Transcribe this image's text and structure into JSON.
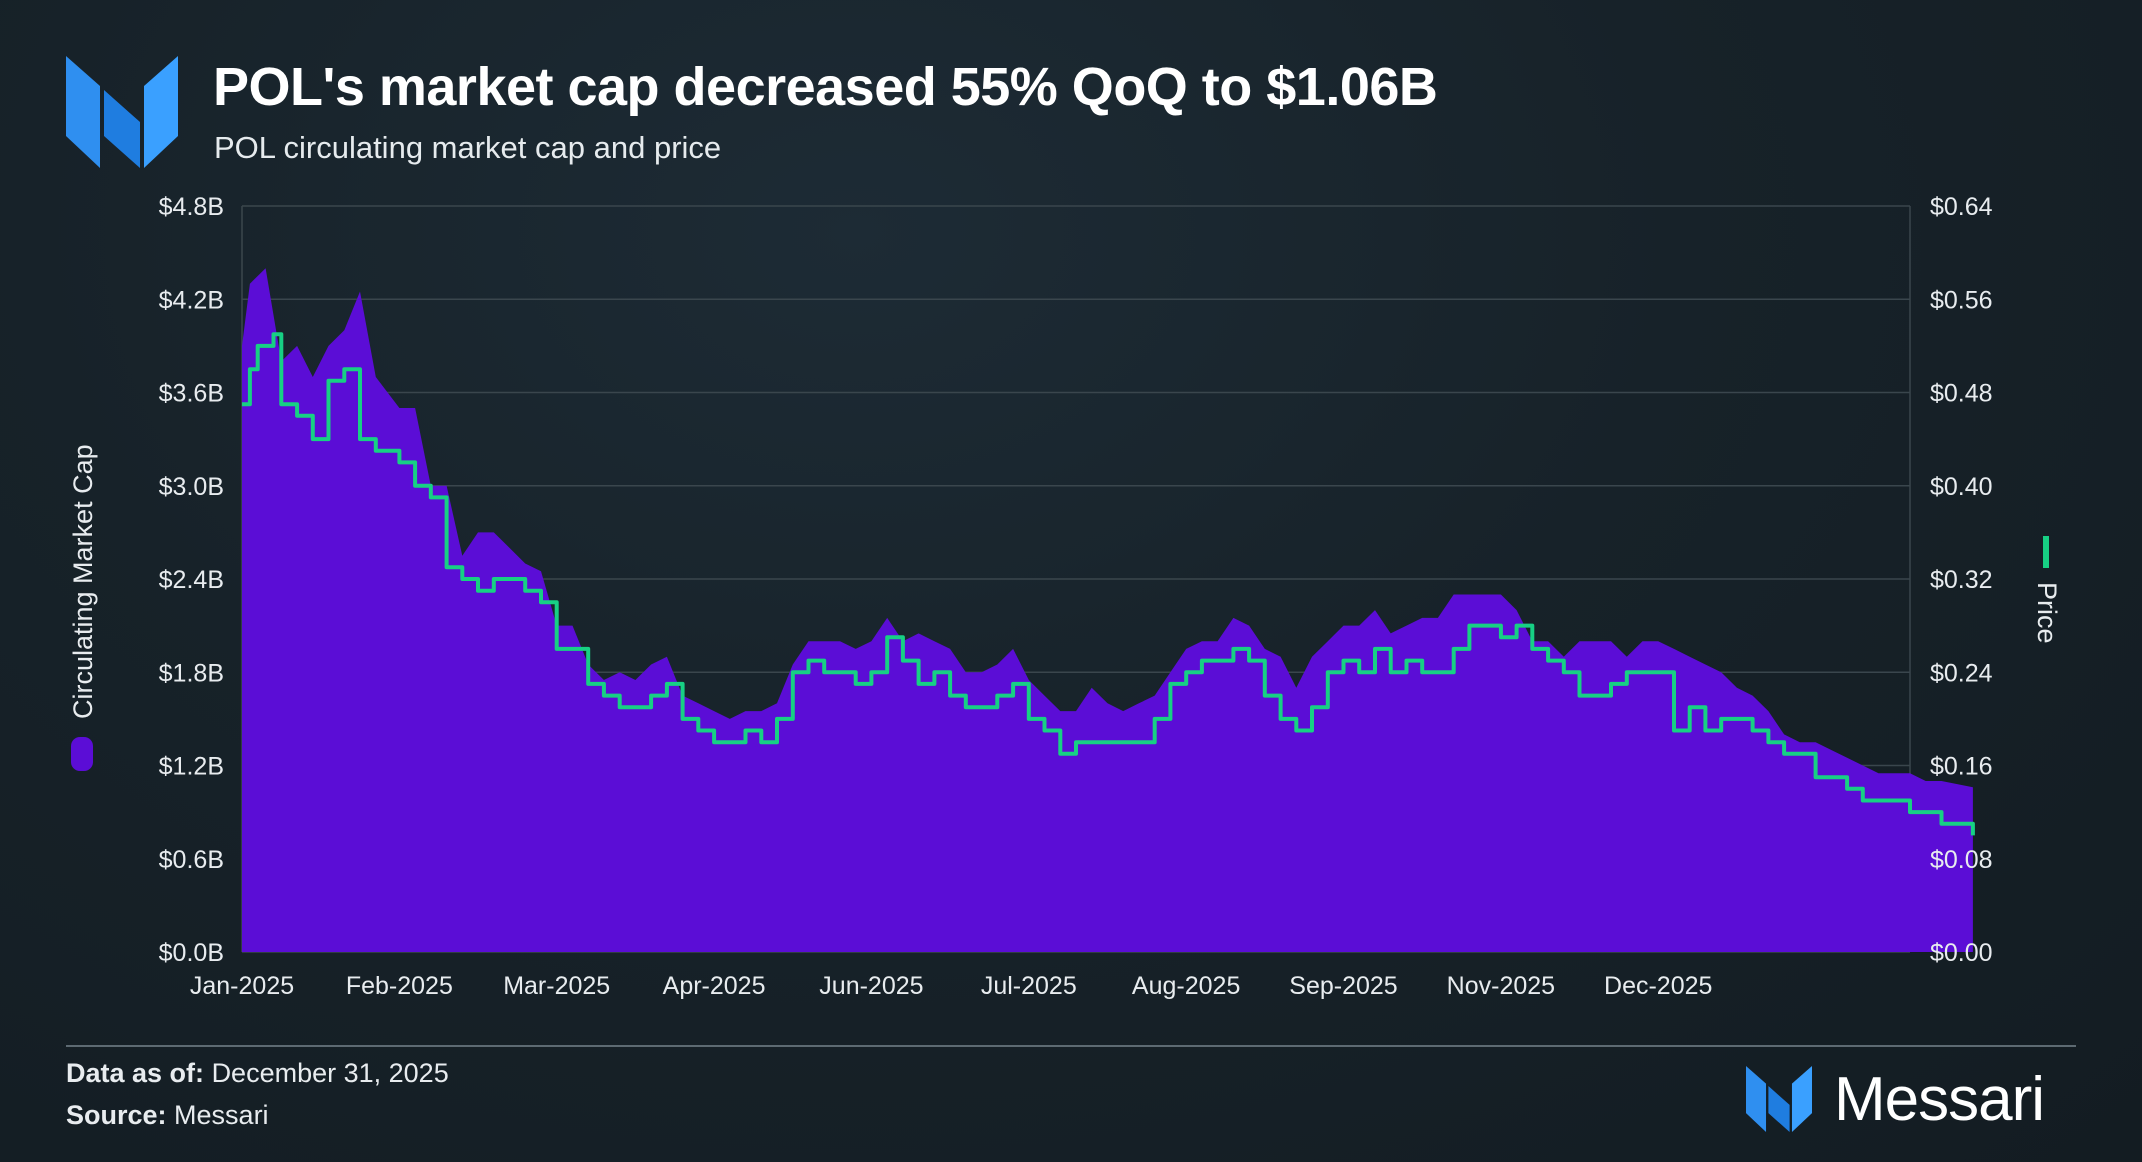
{
  "header": {
    "title": "POL's market cap decreased 55% QoQ to $1.06B",
    "subtitle": "POL circulating market cap and price"
  },
  "footer": {
    "data_as_of_label": "Data as of:",
    "data_as_of_value": "December 31, 2025",
    "source_label": "Source:",
    "source_value": "Messari",
    "brand": "Messari"
  },
  "colors": {
    "market_cap": "#5b0dd6",
    "price": "#17d084",
    "logo": "#2f8ff0",
    "gridline": "#3a464d",
    "axis_text": "#e8ecef"
  },
  "chart_data": {
    "type": "area+line",
    "title": "POL's market cap decreased 55% QoQ to $1.06B",
    "subtitle": "POL circulating market cap and price",
    "x_tick_labels": [
      "Jan-2025",
      "Feb-2025",
      "Mar-2025",
      "Apr-2025",
      "Jun-2025",
      "Jul-2025",
      "Aug-2025",
      "Sep-2025",
      "Nov-2025",
      "Dec-2025"
    ],
    "y_left": {
      "label": "Circulating Market Cap",
      "range": [
        0,
        4.8
      ],
      "ticks": [
        0,
        0.6,
        1.2,
        1.8,
        2.4,
        3.0,
        3.6,
        4.2,
        4.8
      ],
      "tick_labels": [
        "$0.0B",
        "$0.6B",
        "$1.2B",
        "$1.8B",
        "$2.4B",
        "$3.0B",
        "$3.6B",
        "$4.2B",
        "$4.8B"
      ]
    },
    "y_right": {
      "label": "Price",
      "range": [
        0,
        0.64
      ],
      "ticks": [
        0,
        0.08,
        0.16,
        0.24,
        0.32,
        0.4,
        0.48,
        0.56,
        0.64
      ],
      "tick_labels": [
        "$0.00",
        "$0.08",
        "$0.16",
        "$0.24",
        "$0.32",
        "$0.40",
        "$0.48",
        "$0.56",
        "$0.64"
      ]
    },
    "grid": true,
    "legend": [
      {
        "name": "Circulating Market Cap",
        "axis": "left",
        "marker": "area"
      },
      {
        "name": "Price",
        "axis": "right",
        "marker": "line"
      }
    ],
    "series": [
      {
        "name": "Circulating Market Cap",
        "axis": "left",
        "unit": "USD billions",
        "points": [
          [
            0.0,
            3.9
          ],
          [
            0.05,
            4.3
          ],
          [
            0.15,
            4.4
          ],
          [
            0.25,
            3.8
          ],
          [
            0.35,
            3.9
          ],
          [
            0.45,
            3.7
          ],
          [
            0.55,
            3.9
          ],
          [
            0.65,
            4.0
          ],
          [
            0.75,
            4.25
          ],
          [
            0.85,
            3.7
          ],
          [
            1.0,
            3.5
          ],
          [
            1.1,
            3.5
          ],
          [
            1.2,
            3.0
          ],
          [
            1.3,
            3.0
          ],
          [
            1.4,
            2.55
          ],
          [
            1.5,
            2.7
          ],
          [
            1.6,
            2.7
          ],
          [
            1.7,
            2.6
          ],
          [
            1.8,
            2.5
          ],
          [
            1.9,
            2.45
          ],
          [
            2.0,
            2.1
          ],
          [
            2.1,
            2.1
          ],
          [
            2.2,
            1.85
          ],
          [
            2.3,
            1.75
          ],
          [
            2.4,
            1.8
          ],
          [
            2.5,
            1.75
          ],
          [
            2.6,
            1.85
          ],
          [
            2.7,
            1.9
          ],
          [
            2.8,
            1.65
          ],
          [
            2.9,
            1.6
          ],
          [
            3.0,
            1.55
          ],
          [
            3.1,
            1.5
          ],
          [
            3.2,
            1.55
          ],
          [
            3.3,
            1.55
          ],
          [
            3.4,
            1.6
          ],
          [
            3.5,
            1.85
          ],
          [
            3.6,
            2.0
          ],
          [
            3.7,
            2.0
          ],
          [
            3.8,
            2.0
          ],
          [
            3.9,
            1.95
          ],
          [
            4.0,
            2.0
          ],
          [
            4.1,
            2.15
          ],
          [
            4.2,
            2.0
          ],
          [
            4.3,
            2.05
          ],
          [
            4.4,
            2.0
          ],
          [
            4.5,
            1.95
          ],
          [
            4.6,
            1.8
          ],
          [
            4.7,
            1.8
          ],
          [
            4.8,
            1.85
          ],
          [
            4.9,
            1.95
          ],
          [
            5.0,
            1.75
          ],
          [
            5.1,
            1.65
          ],
          [
            5.2,
            1.55
          ],
          [
            5.3,
            1.55
          ],
          [
            5.4,
            1.7
          ],
          [
            5.5,
            1.6
          ],
          [
            5.6,
            1.55
          ],
          [
            5.7,
            1.6
          ],
          [
            5.8,
            1.65
          ],
          [
            5.9,
            1.8
          ],
          [
            6.0,
            1.95
          ],
          [
            6.1,
            2.0
          ],
          [
            6.2,
            2.0
          ],
          [
            6.3,
            2.15
          ],
          [
            6.4,
            2.1
          ],
          [
            6.5,
            1.95
          ],
          [
            6.6,
            1.9
          ],
          [
            6.7,
            1.7
          ],
          [
            6.8,
            1.9
          ],
          [
            6.9,
            2.0
          ],
          [
            7.0,
            2.1
          ],
          [
            7.1,
            2.1
          ],
          [
            7.2,
            2.2
          ],
          [
            7.3,
            2.05
          ],
          [
            7.4,
            2.1
          ],
          [
            7.5,
            2.15
          ],
          [
            7.6,
            2.15
          ],
          [
            7.7,
            2.3
          ],
          [
            7.8,
            2.3
          ],
          [
            7.9,
            2.3
          ],
          [
            8.0,
            2.3
          ],
          [
            8.1,
            2.2
          ],
          [
            8.2,
            2.0
          ],
          [
            8.3,
            2.0
          ],
          [
            8.4,
            1.9
          ],
          [
            8.5,
            2.0
          ],
          [
            8.6,
            2.0
          ],
          [
            8.7,
            2.0
          ],
          [
            8.8,
            1.9
          ],
          [
            8.9,
            2.0
          ],
          [
            9.0,
            2.0
          ],
          [
            9.1,
            1.95
          ],
          [
            9.2,
            1.9
          ],
          [
            9.3,
            1.85
          ],
          [
            9.4,
            1.8
          ],
          [
            9.5,
            1.7
          ],
          [
            9.6,
            1.65
          ],
          [
            9.7,
            1.55
          ],
          [
            9.8,
            1.4
          ],
          [
            9.9,
            1.35
          ],
          [
            10.0,
            1.35
          ],
          [
            10.1,
            1.3
          ],
          [
            10.2,
            1.25
          ],
          [
            10.3,
            1.2
          ],
          [
            10.4,
            1.15
          ],
          [
            10.5,
            1.15
          ],
          [
            10.6,
            1.15
          ],
          [
            10.7,
            1.1
          ],
          [
            10.8,
            1.1
          ],
          [
            10.9,
            1.08
          ],
          [
            11.0,
            1.06
          ]
        ]
      },
      {
        "name": "Price",
        "axis": "right",
        "unit": "USD",
        "points": [
          [
            0.0,
            0.47
          ],
          [
            0.05,
            0.5
          ],
          [
            0.1,
            0.52
          ],
          [
            0.2,
            0.53
          ],
          [
            0.25,
            0.47
          ],
          [
            0.35,
            0.46
          ],
          [
            0.45,
            0.44
          ],
          [
            0.55,
            0.49
          ],
          [
            0.65,
            0.5
          ],
          [
            0.75,
            0.44
          ],
          [
            0.85,
            0.43
          ],
          [
            1.0,
            0.42
          ],
          [
            1.1,
            0.4
          ],
          [
            1.2,
            0.39
          ],
          [
            1.3,
            0.33
          ],
          [
            1.4,
            0.32
          ],
          [
            1.5,
            0.31
          ],
          [
            1.6,
            0.32
          ],
          [
            1.7,
            0.32
          ],
          [
            1.8,
            0.31
          ],
          [
            1.9,
            0.3
          ],
          [
            2.0,
            0.26
          ],
          [
            2.1,
            0.26
          ],
          [
            2.2,
            0.23
          ],
          [
            2.3,
            0.22
          ],
          [
            2.4,
            0.21
          ],
          [
            2.5,
            0.21
          ],
          [
            2.6,
            0.22
          ],
          [
            2.7,
            0.23
          ],
          [
            2.8,
            0.2
          ],
          [
            2.9,
            0.19
          ],
          [
            3.0,
            0.18
          ],
          [
            3.1,
            0.18
          ],
          [
            3.2,
            0.19
          ],
          [
            3.3,
            0.18
          ],
          [
            3.4,
            0.2
          ],
          [
            3.5,
            0.24
          ],
          [
            3.6,
            0.25
          ],
          [
            3.7,
            0.24
          ],
          [
            3.8,
            0.24
          ],
          [
            3.9,
            0.23
          ],
          [
            4.0,
            0.24
          ],
          [
            4.1,
            0.27
          ],
          [
            4.2,
            0.25
          ],
          [
            4.3,
            0.23
          ],
          [
            4.4,
            0.24
          ],
          [
            4.5,
            0.22
          ],
          [
            4.6,
            0.21
          ],
          [
            4.7,
            0.21
          ],
          [
            4.8,
            0.22
          ],
          [
            4.9,
            0.23
          ],
          [
            5.0,
            0.2
          ],
          [
            5.1,
            0.19
          ],
          [
            5.2,
            0.17
          ],
          [
            5.3,
            0.18
          ],
          [
            5.4,
            0.18
          ],
          [
            5.5,
            0.18
          ],
          [
            5.6,
            0.18
          ],
          [
            5.7,
            0.18
          ],
          [
            5.8,
            0.2
          ],
          [
            5.9,
            0.23
          ],
          [
            6.0,
            0.24
          ],
          [
            6.1,
            0.25
          ],
          [
            6.2,
            0.25
          ],
          [
            6.3,
            0.26
          ],
          [
            6.4,
            0.25
          ],
          [
            6.5,
            0.22
          ],
          [
            6.6,
            0.2
          ],
          [
            6.7,
            0.19
          ],
          [
            6.8,
            0.21
          ],
          [
            6.9,
            0.24
          ],
          [
            7.0,
            0.25
          ],
          [
            7.1,
            0.24
          ],
          [
            7.2,
            0.26
          ],
          [
            7.3,
            0.24
          ],
          [
            7.4,
            0.25
          ],
          [
            7.5,
            0.24
          ],
          [
            7.6,
            0.24
          ],
          [
            7.7,
            0.26
          ],
          [
            7.8,
            0.28
          ],
          [
            7.9,
            0.28
          ],
          [
            8.0,
            0.27
          ],
          [
            8.1,
            0.28
          ],
          [
            8.2,
            0.26
          ],
          [
            8.3,
            0.25
          ],
          [
            8.4,
            0.24
          ],
          [
            8.5,
            0.22
          ],
          [
            8.6,
            0.22
          ],
          [
            8.7,
            0.23
          ],
          [
            8.8,
            0.24
          ],
          [
            8.9,
            0.24
          ],
          [
            9.0,
            0.24
          ],
          [
            9.1,
            0.19
          ],
          [
            9.2,
            0.21
          ],
          [
            9.3,
            0.19
          ],
          [
            9.4,
            0.2
          ],
          [
            9.5,
            0.2
          ],
          [
            9.6,
            0.19
          ],
          [
            9.7,
            0.18
          ],
          [
            9.8,
            0.17
          ],
          [
            9.9,
            0.17
          ],
          [
            10.0,
            0.15
          ],
          [
            10.1,
            0.15
          ],
          [
            10.2,
            0.14
          ],
          [
            10.3,
            0.13
          ],
          [
            10.4,
            0.13
          ],
          [
            10.5,
            0.13
          ],
          [
            10.6,
            0.12
          ],
          [
            10.7,
            0.12
          ],
          [
            10.8,
            0.11
          ],
          [
            10.9,
            0.11
          ],
          [
            11.0,
            0.1
          ]
        ]
      }
    ]
  }
}
